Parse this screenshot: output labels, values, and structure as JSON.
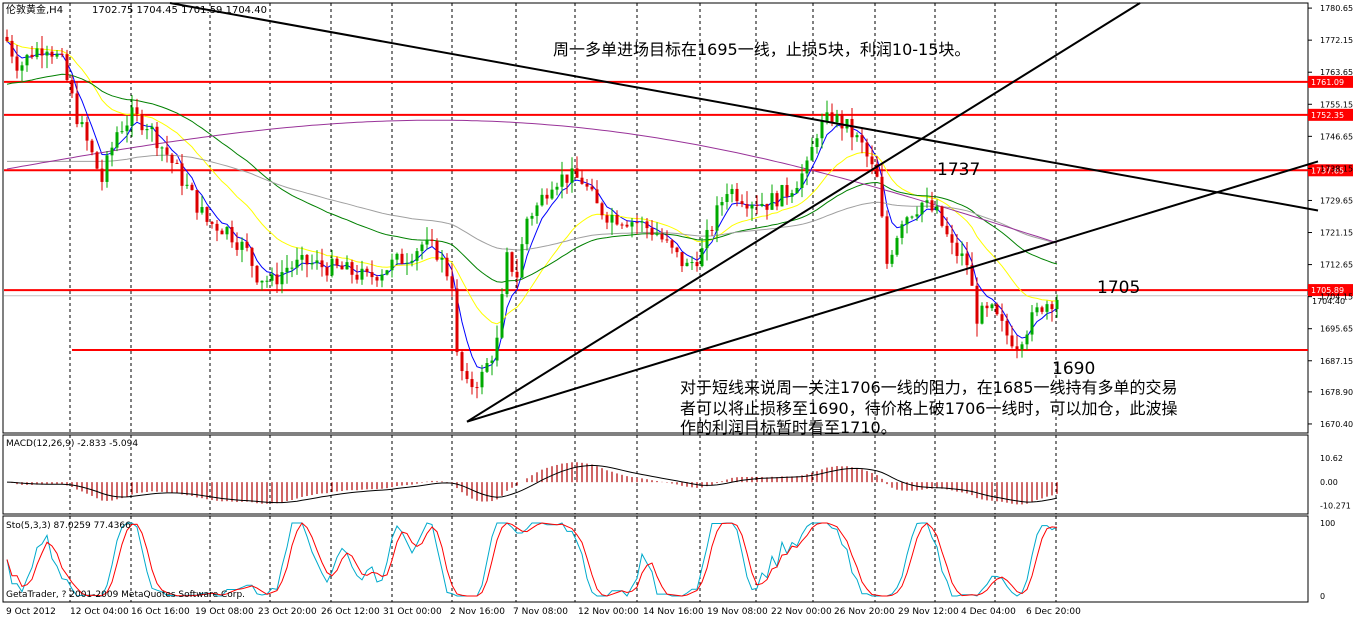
{
  "chart_data": {
    "type": "candlestick",
    "symbol_title": "伦敦黄金,H4",
    "ohlc_readout": "1702.75 1704.45 1701.59 1704.40",
    "main": {
      "ylim": [
        1668,
        1782
      ],
      "price_ticks": [
        1780.65,
        1772.15,
        1763.65,
        1755.15,
        1746.65,
        1738.15,
        1729.65,
        1721.15,
        1712.65,
        1704.15,
        1695.65,
        1687.15,
        1678.9,
        1670.4
      ],
      "hlines": [
        {
          "price": 1761.09,
          "label": "1761.09"
        },
        {
          "price": 1752.35,
          "label": "1752.35"
        },
        {
          "price": 1737.65,
          "label": "1737.65"
        },
        {
          "price": 1705.89,
          "label": "1705.89"
        },
        {
          "price": 1690.0,
          "label": ""
        }
      ],
      "last_price_tag": "1704.40"
    },
    "x_labels": [
      "9 Oct 2012",
      "12 Oct 04:00",
      "16 Oct 16:00",
      "19 Oct 08:00",
      "23 Oct 20:00",
      "26 Oct 12:00",
      "31 Oct 00:00",
      "2 Nov 16:00",
      "7 Nov 08:00",
      "12 Nov 00:00",
      "14 Nov 16:00",
      "19 Nov 08:00",
      "22 Nov 00:00",
      "26 Nov 20:00",
      "29 Nov 12:00",
      "4 Dec 04:00",
      "6 Dec 20:00"
    ],
    "annotations": {
      "top_note": "周一多单进场目标在1695一线，止损5块，利润10-15块。",
      "label_1737": "1737",
      "label_1705": "1705",
      "label_1690": "1690",
      "bottom_note_lines": [
        "对于短线来说周一关注1706一线的阻力，在1685一线持有多单的交易",
        "者可以将止损移至1690，待价格上破1706一线时，可以加仓，此波操",
        "作的利润目标暂时看至1710。"
      ]
    },
    "macd": {
      "label": "MACD(12,26,9) -2.833 -5.094",
      "ticks": [
        "10.62",
        "0.00",
        "-10.271"
      ],
      "ylim": [
        -13,
        14
      ]
    },
    "stoch": {
      "label": "Sto(5,3,3) 87.0259 77.4366",
      "ticks": [
        "100",
        "0"
      ],
      "ylim": [
        0,
        100
      ]
    },
    "copyright": "GetaTrader, ? 2001-2009 MetaQuotes Software Corp.",
    "colors": {
      "bull": "#00aa00",
      "bear": "#dd0000",
      "hline": "#ff0000",
      "ma_fast": "#0000ff",
      "ma_mid": "#ffff00",
      "ma_slow": "#008000",
      "ma_purple": "#993399",
      "ma_gray": "#a0a0a0",
      "trend": "#000000",
      "macd_hist": "#b00000",
      "stoch_main": "#ff0000",
      "stoch_sig": "#00aacc"
    }
  }
}
